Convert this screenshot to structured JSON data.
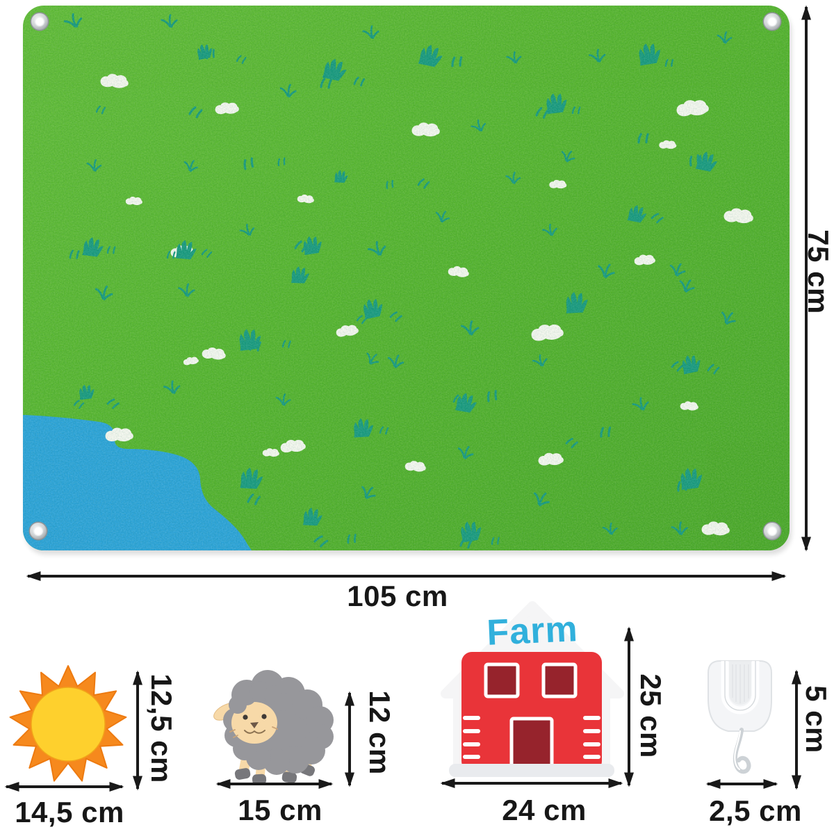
{
  "figure": {
    "kind": "product dimensions diagram",
    "unit": "cm"
  },
  "mat": {
    "name": "felt farm play mat",
    "width_label": "105 cm",
    "height_label": "75 cm"
  },
  "items": {
    "sun": {
      "width_label": "14,5 cm",
      "height_label": "12,5 cm"
    },
    "sheep": {
      "width_label": "15 cm",
      "height_label": "12 cm"
    },
    "farmhouse": {
      "sign_text": "Farm",
      "width_label": "24 cm",
      "height_label": "25 cm"
    },
    "hook": {
      "width_label": "2,5 cm",
      "height_label": "5 cm"
    }
  },
  "colors": {
    "mat_green": "#55b42c",
    "mat_green_light": "#61bc36",
    "mat_green_dark": "#4aa827",
    "grass_teal": "#17997e",
    "pond_blue": "#2aa2d8",
    "cloud_white": "#f5f7ef",
    "arrow_black": "#191919",
    "sun_orange": "#f6891d",
    "sun_orange_dark": "#ed7a10",
    "sun_yellow": "#fed02d",
    "sheep_gray": "#97979b",
    "sheep_cream": "#f7d9a8",
    "sheep_hoof": "#77777b",
    "house_red": "#e93439",
    "window_maroon": "#96232c",
    "roof_white": "#f5f5f6",
    "base_white": "#e9ebee",
    "sign_blue": "#31b0dc",
    "hook_body": "#f4f5f7",
    "hook_outline": "#dfe2e5",
    "eyelet_silver": "#c2c6c9"
  }
}
